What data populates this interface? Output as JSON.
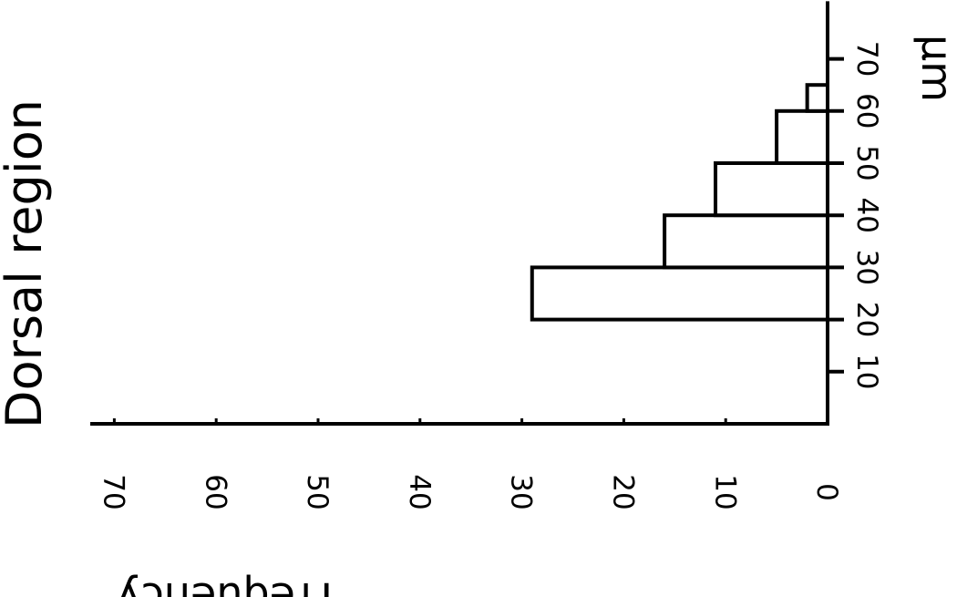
{
  "chart_data": {
    "type": "bar",
    "orientation": "horizontal",
    "title": "Dorsal region",
    "xlabel": "µm",
    "ylabel": "Frequency",
    "bins": [
      {
        "from": 20,
        "to": 30,
        "value": 29
      },
      {
        "from": 30,
        "to": 40,
        "value": 16
      },
      {
        "from": 40,
        "to": 50,
        "value": 11
      },
      {
        "from": 50,
        "to": 60,
        "value": 5
      },
      {
        "from": 60,
        "to": 65,
        "value": 2
      }
    ],
    "x_ticks": [
      "10",
      "20",
      "30",
      "40",
      "50",
      "60",
      "70"
    ],
    "y_ticks": [
      "0",
      "10",
      "20",
      "30",
      "40",
      "50",
      "60",
      "70"
    ],
    "xlim": [
      0,
      80
    ],
    "ylim": [
      0,
      72
    ],
    "grid": false,
    "legend": "none"
  }
}
